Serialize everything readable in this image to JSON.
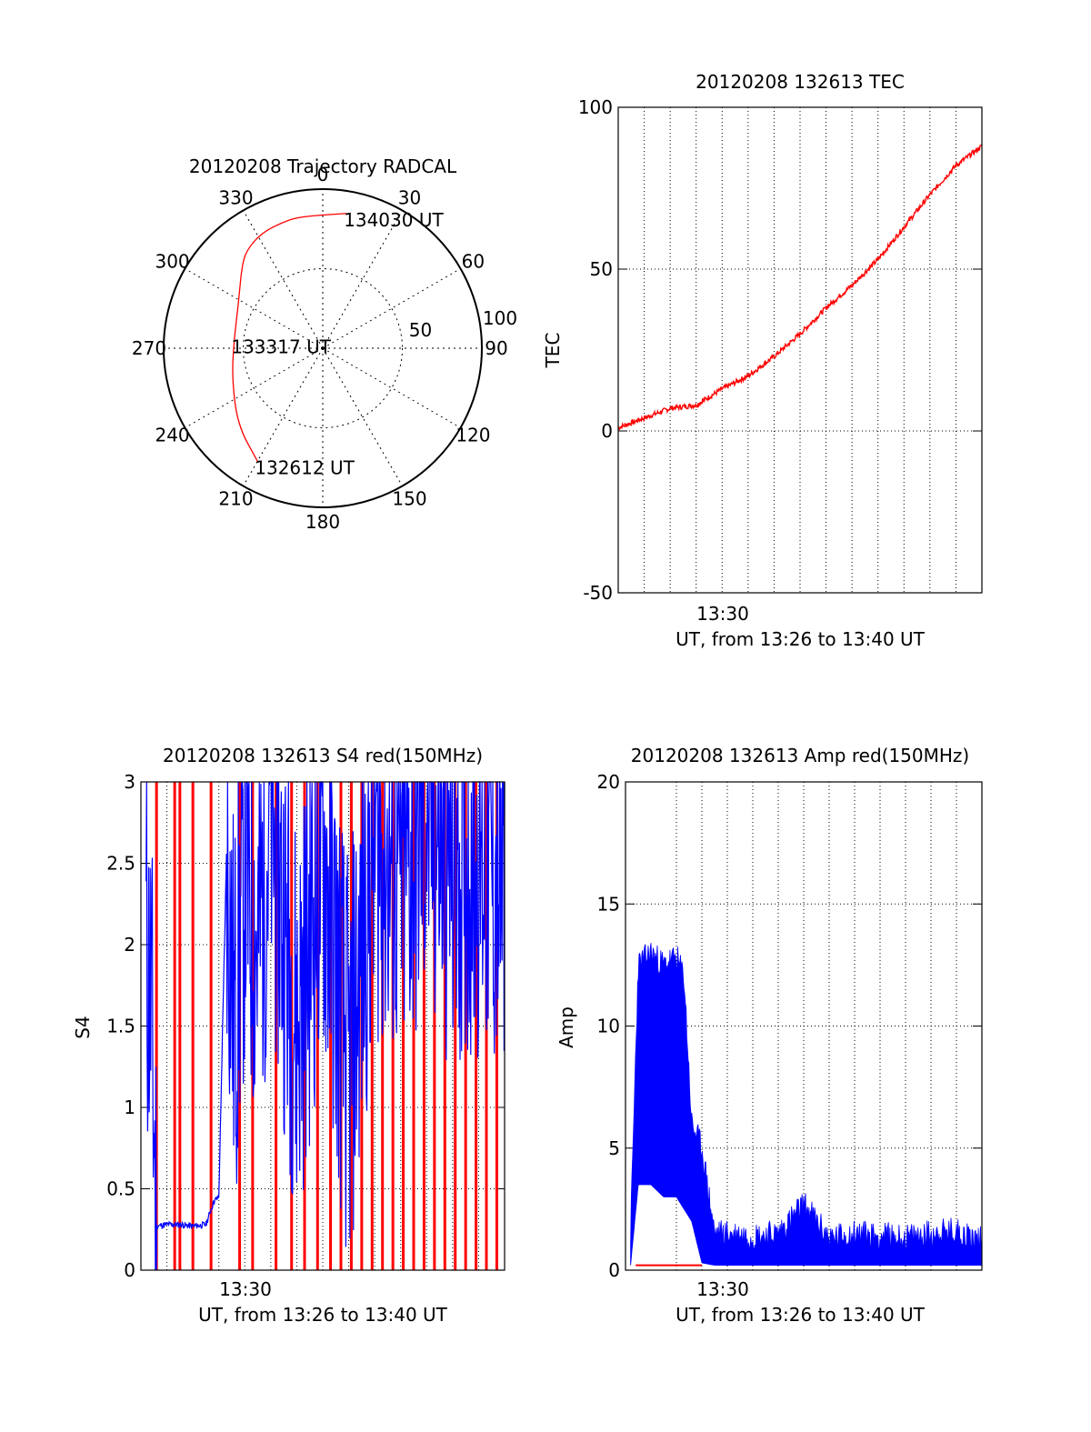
{
  "chart_data": [
    {
      "type": "polar",
      "title": "20120208 Trajectory RADCAL",
      "angle_ticks": [
        "0",
        "30",
        "60",
        "90",
        "120",
        "150",
        "180",
        "210",
        "240",
        "270",
        "300",
        "330"
      ],
      "radius_labels": [
        "50",
        "100"
      ],
      "rlim": [
        0,
        100
      ],
      "grid": true,
      "colors": {
        "trajectory": "#ff0000"
      },
      "series": [
        {
          "points": [
            {
              "azimuth": 210,
              "zenith": 82
            },
            {
              "azimuth": 228,
              "zenith": 72
            },
            {
              "azimuth": 252,
              "zenith": 60
            },
            {
              "azimuth": 275,
              "zenith": 56
            },
            {
              "azimuth": 298,
              "zenith": 60
            },
            {
              "azimuth": 315,
              "zenith": 72
            },
            {
              "azimuth": 322,
              "zenith": 78
            },
            {
              "azimuth": 332,
              "zenith": 82
            },
            {
              "azimuth": 342,
              "zenith": 83
            },
            {
              "azimuth": 350,
              "zenith": 84
            },
            {
              "azimuth": 10,
              "zenith": 86
            }
          ]
        }
      ],
      "annotations": [
        {
          "text": "134030 UT",
          "azimuth": 10,
          "zenith": 86
        },
        {
          "text": "133317 UT",
          "azimuth": 275,
          "zenith": 56
        },
        {
          "text": "132612 UT",
          "azimuth": 210,
          "zenith": 82
        }
      ]
    },
    {
      "type": "line",
      "title": "20120208 132613 TEC",
      "xlabel": "UT, from 13:26 to 13:40 UT",
      "ylabel": "TEC",
      "xticklabels": [
        "13:30"
      ],
      "yticks": [
        "100",
        "50",
        "0",
        "-50"
      ],
      "xlim_minutes": [
        13.3,
        14.0
      ],
      "ylim": [
        -50,
        100
      ],
      "grid": true,
      "series": [
        {
          "color": "#ff0000",
          "x_min_of_hour": [
            26.0,
            27.0,
            28.0,
            29.0,
            30.0,
            31.0,
            32.0,
            33.0,
            34.0,
            35.0,
            36.0,
            37.0,
            38.0,
            39.0,
            40.0
          ],
          "values": [
            1,
            4,
            7,
            8,
            13,
            17,
            23,
            30,
            38,
            45,
            53,
            63,
            73,
            82,
            88
          ]
        }
      ]
    },
    {
      "type": "line",
      "title": "20120208 132613 S4 red(150MHz)",
      "xlabel": "UT, from 13:26 to 13:40 UT",
      "ylabel": "S4",
      "xticklabels": [
        "13:30"
      ],
      "yticks": [
        "0",
        "0.5",
        "1",
        "1.5",
        "2",
        "2.5",
        "3"
      ],
      "ylim": [
        0,
        3
      ],
      "grid": true,
      "series": [
        {
          "color": "#0000ff",
          "x_min_of_hour": [
            26.2,
            26.4,
            26.6,
            27.0,
            27.5,
            28.0,
            28.5,
            28.8,
            29.0,
            29.3,
            29.6,
            30.0,
            30.5,
            31.0,
            32.0,
            33.0,
            34.0,
            35.0,
            36.0,
            37.0,
            38.0,
            39.0,
            40.0
          ],
          "values": [
            2.0,
            1.6,
            0.27,
            0.28,
            0.28,
            0.27,
            0.28,
            0.42,
            0.45,
            2.6,
            1.5,
            2.5,
            2.0,
            2.8,
            1.5,
            2.6,
            1.2,
            2.7,
            2.4,
            2.8,
            2.5,
            2.6,
            2.3
          ]
        }
      ],
      "red_spikes_x_min_of_hour": [
        26.6,
        27.3,
        27.5,
        28.0,
        28.7,
        29.8,
        30.3,
        31.2,
        31.8,
        32.3,
        32.8,
        33.3,
        33.7,
        34.1,
        34.5,
        34.9,
        35.3,
        35.7,
        36.1,
        36.5,
        36.9,
        37.3,
        37.7,
        38.1,
        38.5,
        38.9,
        39.3,
        39.7
      ],
      "red_spikes_top": 3
    },
    {
      "type": "line",
      "title": "20120208 132613 Amp red(150MHz)",
      "xlabel": "UT, from 13:26 to 13:40 UT",
      "ylabel": "Amp",
      "xticklabels": [
        "13:30"
      ],
      "yticks": [
        "0",
        "5",
        "10",
        "15",
        "20"
      ],
      "ylim": [
        0,
        20
      ],
      "grid": true,
      "series": [
        {
          "color": "#0000ff",
          "x_min_of_hour": [
            26.2,
            26.5,
            27.0,
            27.5,
            28.0,
            28.3,
            28.6,
            29.0,
            29.5,
            30.0,
            31.0,
            32.0,
            33.0,
            34.0,
            35.0,
            36.0,
            37.0,
            38.0,
            39.0,
            40.0
          ],
          "upper": [
            1.5,
            12.5,
            13,
            12.5,
            12.8,
            12,
            6,
            5,
            1.5,
            1.5,
            1.4,
            1.5,
            2.7,
            1.3,
            1.5,
            1.4,
            1.3,
            1.5,
            1.6,
            1.2
          ],
          "lower": [
            0.2,
            3.5,
            3.5,
            3.0,
            3.0,
            2.5,
            2.0,
            0.3,
            0.2,
            0.2,
            0.2,
            0.2,
            0.2,
            0.2,
            0.2,
            0.2,
            0.2,
            0.2,
            0.2,
            0.2
          ]
        },
        {
          "color": "#ff0000",
          "x_min_of_hour": [
            26.4,
            29.0
          ],
          "values": [
            0.2,
            0.2
          ]
        }
      ]
    }
  ]
}
